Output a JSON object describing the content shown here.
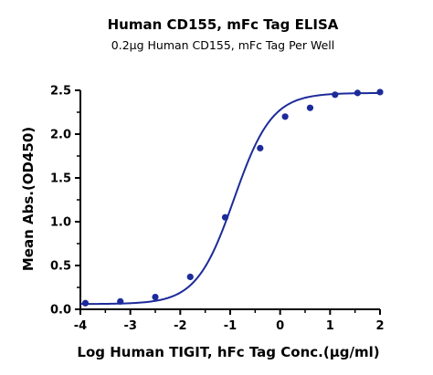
{
  "chart_data": {
    "type": "scatter",
    "title": "Human CD155, mFc Tag ELISA",
    "subtitle": "0.2μg Human CD155, mFc Tag Per Well",
    "xlabel": "Log Human TIGIT,  hFc Tag Conc.(μg/ml)",
    "ylabel": "Mean Abs.(OD450)",
    "xlim": [
      -4,
      2
    ],
    "ylim": [
      0.0,
      2.5
    ],
    "x_ticks": [
      -4,
      -3,
      -2,
      -1,
      0,
      1,
      2
    ],
    "x_tick_labels": [
      "-4",
      "-3",
      "-2",
      "-1",
      "0",
      "1",
      "2"
    ],
    "y_ticks": [
      0.0,
      0.5,
      1.0,
      1.5,
      2.0,
      2.5
    ],
    "y_tick_labels": [
      "0.0",
      "0.5",
      "1.0",
      "1.5",
      "2.0",
      "2.5"
    ],
    "grid": false,
    "legend": "none",
    "series": [
      {
        "points": [
          {
            "x": -3.9,
            "y": 0.07
          },
          {
            "x": -3.2,
            "y": 0.09
          },
          {
            "x": -2.5,
            "y": 0.14
          },
          {
            "x": -1.8,
            "y": 0.37
          },
          {
            "x": -1.1,
            "y": 1.05
          },
          {
            "x": -0.4,
            "y": 1.84
          },
          {
            "x": 0.1,
            "y": 2.2
          },
          {
            "x": 0.6,
            "y": 2.3
          },
          {
            "x": 1.1,
            "y": 2.45
          },
          {
            "x": 1.55,
            "y": 2.47
          },
          {
            "x": 2.0,
            "y": 2.48
          }
        ],
        "fit": {
          "model": "four-parameter logistic",
          "bottom": 0.06,
          "top": 2.47,
          "log_ec50": -0.92,
          "hill_slope": 1.15
        }
      }
    ],
    "colors": {
      "series": "#1c2b99",
      "axis": "#000000"
    }
  }
}
